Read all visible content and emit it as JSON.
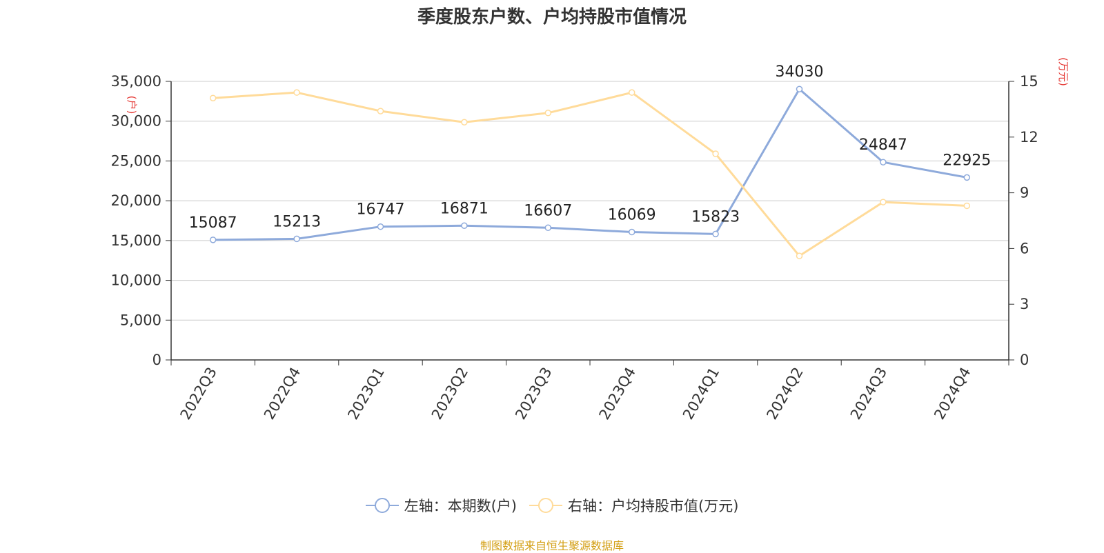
{
  "chart_data": {
    "type": "line",
    "title": "季度股东户数、户均持股市值情况",
    "categories": [
      "2022Q3",
      "2022Q4",
      "2023Q1",
      "2023Q2",
      "2023Q3",
      "2023Q4",
      "2024Q1",
      "2024Q2",
      "2024Q3",
      "2024Q4"
    ],
    "series": [
      {
        "name": "左轴：本期数(户)",
        "axis": "left",
        "color": "#8eaadb",
        "values": [
          15087,
          15213,
          16747,
          16871,
          16607,
          16069,
          15823,
          34030,
          24847,
          22925
        ],
        "data_labels": [
          "15087",
          "15213",
          "16747",
          "16871",
          "16607",
          "16069",
          "15823",
          "34030",
          "24847",
          "22925"
        ]
      },
      {
        "name": "右轴：户均持股市值(万元)",
        "axis": "right",
        "color": "#ffdb9a",
        "values": [
          14.1,
          14.4,
          13.4,
          12.8,
          13.3,
          14.4,
          11.1,
          5.6,
          8.5,
          8.3
        ]
      }
    ],
    "left_axis": {
      "label": "(户)",
      "min": 0,
      "max": 35000,
      "ticks": [
        0,
        5000,
        10000,
        15000,
        20000,
        25000,
        30000,
        35000
      ],
      "tick_labels": [
        "0",
        "5,000",
        "10,000",
        "15,000",
        "20,000",
        "25,000",
        "30,000",
        "35,000"
      ]
    },
    "right_axis": {
      "label": "(万元)",
      "min": 0,
      "max": 15,
      "ticks": [
        0,
        3,
        6,
        9,
        12,
        15
      ],
      "tick_labels": [
        "0",
        "3",
        "6",
        "9",
        "12",
        "15"
      ]
    },
    "grid": true,
    "legend_position": "bottom"
  },
  "source_text": "制图数据来自恒生聚源数据库",
  "colors": {
    "axis_label": "#e53935",
    "source": "#d4a017",
    "grid": "#cccccc",
    "axis": "#333333"
  }
}
